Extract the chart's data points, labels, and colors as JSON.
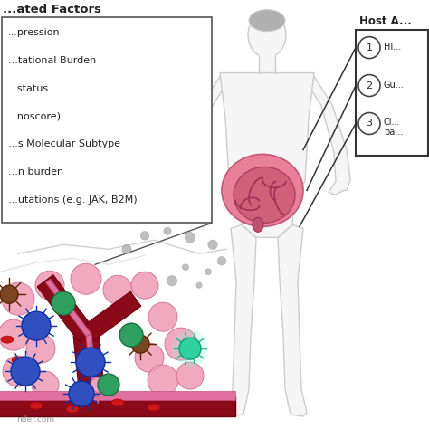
{
  "title_left": "...ated Factors",
  "left_box_items": [
    "...pression",
    "...tational Burden",
    "...status",
    "...noscore)",
    "...s Molecular Subtype",
    "...n burden",
    "...utations (e.g. JAK, B2M)"
  ],
  "right_panel_title": "Host A...",
  "right_panel_items": [
    {
      "num": "1",
      "text": "HI..."
    },
    {
      "num": "2",
      "text": "Gu..."
    },
    {
      "num": "3",
      "text": "Ci...\nba..."
    }
  ],
  "watermark": "nder.com",
  "bg_color": "#ffffff",
  "box_border_color": "#555555",
  "body_fill": "#f5f5f5",
  "body_edge": "#cccccc",
  "head_hair": "#b0b0b0",
  "intestine_outer": "#e07090",
  "intestine_inner": "#c85070",
  "text_color": "#222222",
  "vessel_color": "#8b0a1a",
  "vessel_edge": "#6b0010",
  "pink_cell": "#f0a0b8",
  "pink_cell_edge": "#d07090",
  "blue_cell": "#3050c0",
  "blue_cell_edge": "#1030a0",
  "green_cell": "#30a060",
  "green_cell_edge": "#1a7040",
  "brown_cell": "#7a4520",
  "brown_cell_edge": "#5a2500",
  "cyan_cell": "#30d0a0",
  "gray_dot": "#aaaaaa",
  "rbc_color": "#cc1818",
  "panel_border": "#333333"
}
